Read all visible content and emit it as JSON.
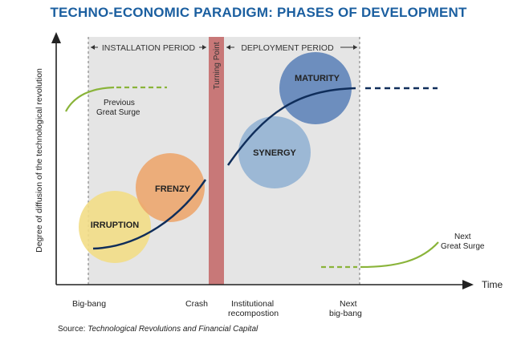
{
  "title": "TECHNO-ECONOMIC PARADIGM: PHASES OF DEVELOPMENT",
  "axes": {
    "y_label": "Degree of diffusion of the technological revolution",
    "x_label": "Time"
  },
  "periods": {
    "installation": "INSTALLATION PERIOD",
    "deployment": "DEPLOYMENT PERIOD",
    "turning_point": "Turning Point"
  },
  "phases": {
    "irruption": "IRRUPTION",
    "frenzy": "FRENZY",
    "synergy": "SYNERGY",
    "maturity": "MATURITY"
  },
  "surges": {
    "previous_line1": "Previous",
    "previous_line2": "Great Surge",
    "next_line1": "Next",
    "next_line2": "Great Surge"
  },
  "x_events": {
    "big_bang": "Big-bang",
    "crash": "Crash",
    "institutional_line1": "Institutional",
    "institutional_line2": "recompostion",
    "next_bigbang_line1": "Next",
    "next_bigbang_line2": "big-bang"
  },
  "source": {
    "prefix": "Source: ",
    "title": "Technological Revolutions and Financial Capital"
  },
  "colors": {
    "title": "#1b5fa0",
    "irruption": "#f2dd86",
    "frenzy": "#eca66e",
    "synergy": "#93b3d3",
    "maturity": "#5f84b9",
    "turning_point": "#c87878",
    "period_shade": "#e5e5e5",
    "curve": "#0f2d5a",
    "surge": "#8ab43a"
  }
}
